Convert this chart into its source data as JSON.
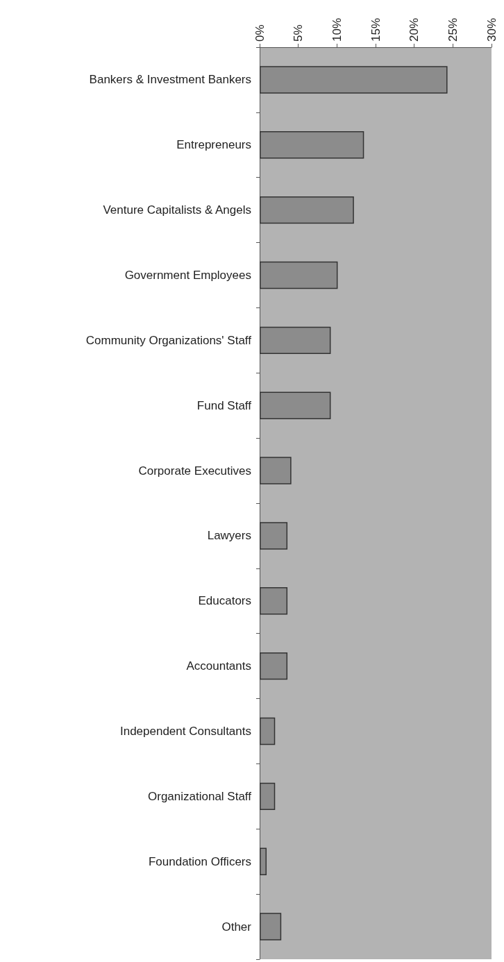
{
  "chart_data": {
    "type": "bar",
    "orientation": "horizontal",
    "categories": [
      "Bankers & Investment Bankers",
      "Entrepreneurs",
      "Venture Capitalists & Angels",
      "Government Employees",
      "Community Organizations' Staff",
      "Fund Staff",
      "Corporate Executives",
      "Lawyers",
      "Educators",
      "Accountants",
      "Independent Consultants",
      "Organizational Staff",
      "Foundation Officers",
      "Other"
    ],
    "values": [
      24.3,
      13.5,
      12.2,
      10.1,
      9.2,
      9.2,
      4.1,
      3.6,
      3.6,
      3.6,
      2.0,
      2.0,
      0.9,
      2.8
    ],
    "color": "#8c8c8c",
    "xlim": [
      0,
      30
    ],
    "xticks": [
      {
        "value": 0,
        "label": "0%"
      },
      {
        "value": 5,
        "label": "5%"
      },
      {
        "value": 10,
        "label": "10%"
      },
      {
        "value": 15,
        "label": "15%"
      },
      {
        "value": 20,
        "label": "20%"
      },
      {
        "value": 25,
        "label": "25%"
      },
      {
        "value": 30,
        "label": "30%"
      }
    ],
    "grid": false
  }
}
